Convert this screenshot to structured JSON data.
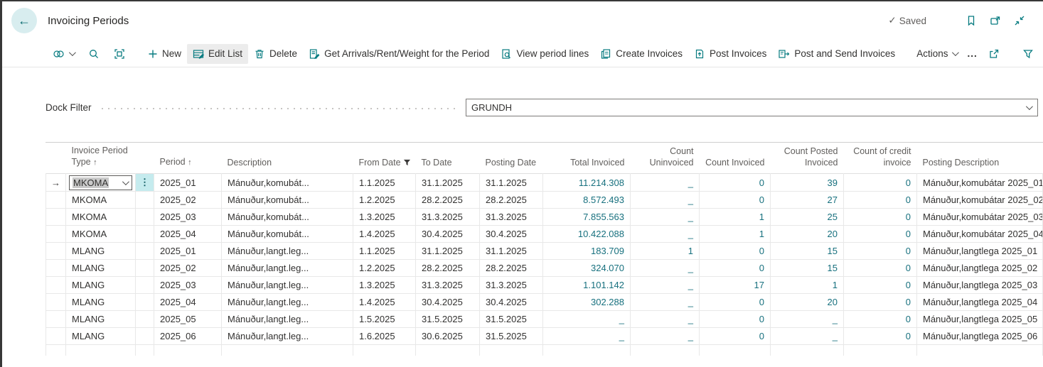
{
  "header": {
    "title": "Invoicing Periods",
    "saved_label": "Saved"
  },
  "toolbar": {
    "new": "New",
    "edit_list": "Edit List",
    "delete": "Delete",
    "get_arrivals": "Get Arrivals/Rent/Weight for the Period",
    "view_period_lines": "View period lines",
    "create_invoices": "Create Invoices",
    "post_invoices": "Post Invoices",
    "post_and_send": "Post and Send Invoices",
    "actions": "Actions",
    "more": "..."
  },
  "filter": {
    "label": "Dock Filter",
    "value": "GRUNDH"
  },
  "icons": {
    "saved_check": "✓",
    "sort_ascending": "↑",
    "row_arrow": "→",
    "row_options": "⋮"
  },
  "colors": {
    "accent": "#077b80",
    "link": "#17707e",
    "options_cell": "#c5ebee",
    "selection": "#c9c9c9"
  },
  "table": {
    "columns": {
      "type": {
        "line1": "Invoice Period",
        "line2": "Type",
        "sorted": "ascending"
      },
      "period": {
        "line2": "Period",
        "sorted": "ascending"
      },
      "description": {
        "line2": "Description"
      },
      "from_date": {
        "line2": "From Date",
        "filtered": true
      },
      "to_date": {
        "line2": "To Date"
      },
      "posting_date": {
        "line2": "Posting Date"
      },
      "total_invoiced": {
        "line2": "Total Invoiced"
      },
      "count_uninvoiced": {
        "line1": "Count",
        "line2": "Uninvoiced"
      },
      "count_invoiced": {
        "line2": "Count Invoiced"
      },
      "count_posted": {
        "line1": "Count Posted",
        "line2": "Invoiced"
      },
      "count_credit": {
        "line1": "Count of credit",
        "line2": "invoice"
      },
      "posting_description": {
        "line2": "Posting Description"
      }
    },
    "rows": [
      {
        "focused": true,
        "type": "MKOMA",
        "period": "2025_01",
        "description": "Mánuður,komubát...",
        "from_date": "1.1.2025",
        "to_date": "31.1.2025",
        "posting_date": "31.1.2025",
        "total_invoiced": "11.214.308",
        "count_uninvoiced": "_",
        "count_invoiced": "0",
        "count_posted": "39",
        "count_credit": "0",
        "posting_description": "Mánuður,komubátar 2025_01"
      },
      {
        "type": "MKOMA",
        "period": "2025_02",
        "description": "Mánuður,komubát...",
        "from_date": "1.2.2025",
        "to_date": "28.2.2025",
        "posting_date": "28.2.2025",
        "total_invoiced": "8.572.493",
        "count_uninvoiced": "_",
        "count_invoiced": "0",
        "count_posted": "27",
        "count_credit": "0",
        "posting_description": "Mánuður,komubátar 2025_02"
      },
      {
        "type": "MKOMA",
        "period": "2025_03",
        "description": "Mánuður,komubát...",
        "from_date": "1.3.2025",
        "to_date": "31.3.2025",
        "posting_date": "31.3.2025",
        "total_invoiced": "7.855.563",
        "count_uninvoiced": "_",
        "count_invoiced": "1",
        "count_posted": "25",
        "count_credit": "0",
        "posting_description": "Mánuður,komubátar 2025_03"
      },
      {
        "type": "MKOMA",
        "period": "2025_04",
        "description": "Mánuður,komubát...",
        "from_date": "1.4.2025",
        "to_date": "30.4.2025",
        "posting_date": "30.4.2025",
        "total_invoiced": "10.422.088",
        "count_uninvoiced": "_",
        "count_invoiced": "1",
        "count_posted": "20",
        "count_credit": "0",
        "posting_description": "Mánuður,komubátar 2025_04"
      },
      {
        "type": "MLANG",
        "period": "2025_01",
        "description": "Mánuður,langt.leg...",
        "from_date": "1.1.2025",
        "to_date": "31.1.2025",
        "posting_date": "31.1.2025",
        "total_invoiced": "183.709",
        "count_uninvoiced": "1",
        "count_invoiced": "0",
        "count_posted": "15",
        "count_credit": "0",
        "posting_description": "Mánuður,langtlega 2025_01"
      },
      {
        "type": "MLANG",
        "period": "2025_02",
        "description": "Mánuður,langt.leg...",
        "from_date": "1.2.2025",
        "to_date": "28.2.2025",
        "posting_date": "28.2.2025",
        "total_invoiced": "324.070",
        "count_uninvoiced": "_",
        "count_invoiced": "0",
        "count_posted": "15",
        "count_credit": "0",
        "posting_description": "Mánuður,langtlega 2025_02"
      },
      {
        "type": "MLANG",
        "period": "2025_03",
        "description": "Mánuður,langt.leg...",
        "from_date": "1.3.2025",
        "to_date": "31.3.2025",
        "posting_date": "31.3.2025",
        "total_invoiced": "1.101.142",
        "count_uninvoiced": "_",
        "count_invoiced": "17",
        "count_posted": "1",
        "count_credit": "0",
        "posting_description": "Mánuður,langtlega 2025_03"
      },
      {
        "type": "MLANG",
        "period": "2025_04",
        "description": "Mánuður,langt.leg...",
        "from_date": "1.4.2025",
        "to_date": "30.4.2025",
        "posting_date": "30.4.2025",
        "total_invoiced": "302.288",
        "count_uninvoiced": "_",
        "count_invoiced": "0",
        "count_posted": "20",
        "count_credit": "0",
        "posting_description": "Mánuður,langtlega 2025_04"
      },
      {
        "type": "MLANG",
        "period": "2025_05",
        "description": "Mánuður,langt.leg...",
        "from_date": "1.5.2025",
        "to_date": "31.5.2025",
        "posting_date": "31.5.2025",
        "total_invoiced": "_",
        "count_uninvoiced": "_",
        "count_invoiced": "0",
        "count_posted": "_",
        "count_credit": "0",
        "posting_description": "Mánuður,langtlega 2025_05"
      },
      {
        "type": "MLANG",
        "period": "2025_06",
        "description": "Mánuður,langt.leg...",
        "from_date": "1.6.2025",
        "to_date": "30.6.2025",
        "posting_date": "31.5.2025",
        "total_invoiced": "_",
        "count_uninvoiced": "_",
        "count_invoiced": "0",
        "count_posted": "_",
        "count_credit": "0",
        "posting_description": "Mánuður,langtlega 2025_06"
      }
    ]
  }
}
